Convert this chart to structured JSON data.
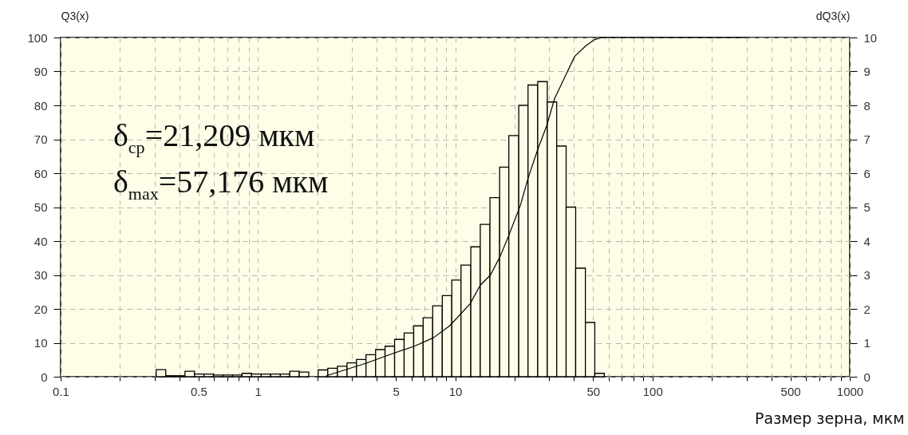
{
  "chart_data": {
    "type": "histogram",
    "xlabel": "Размер зерна, мкм",
    "ylabel": "Q3(x)",
    "y2label": "dQ3(x)",
    "annotations": [
      "δ$_{cp}$=21,209 мкм",
      "δ$_{max}$=57,176 мкм"
    ],
    "log": "x",
    "grid": true,
    "marker": "none",
    "line_style": "solid",
    "xlim": [
      0.1,
      1000
    ],
    "xticks": [
      0.1,
      {
        "value": 0.2,
        "label": null
      },
      {
        "value": 0.3,
        "label": null
      },
      {
        "value": 0.4,
        "label": null
      },
      0.5,
      {
        "value": 0.6,
        "label": null
      },
      {
        "value": 0.7,
        "label": null
      },
      {
        "value": 0.8,
        "label": null
      },
      {
        "value": 0.9,
        "label": null
      },
      1,
      {
        "value": 2,
        "label": null
      },
      {
        "value": 3,
        "label": null
      },
      {
        "value": 4,
        "label": null
      },
      5,
      {
        "value": 6,
        "label": null
      },
      {
        "value": 7,
        "label": null
      },
      {
        "value": 8,
        "label": null
      },
      {
        "value": 9,
        "label": null
      },
      10,
      {
        "value": 20,
        "label": null
      },
      {
        "value": 30,
        "label": null
      },
      {
        "value": 40,
        "label": null
      },
      50,
      {
        "value": 60,
        "label": null
      },
      {
        "value": 70,
        "label": null
      },
      {
        "value": 80,
        "label": null
      },
      {
        "value": 90,
        "label": null
      },
      100,
      {
        "value": 200,
        "label": null
      },
      {
        "value": 300,
        "label": null
      },
      {
        "value": 400,
        "label": null
      },
      500,
      {
        "value": 600,
        "label": null
      },
      {
        "value": 700,
        "label": null
      },
      {
        "value": 800,
        "label": null
      },
      {
        "value": 900,
        "label": null
      },
      1000
    ],
    "ylim": [
      0,
      100
    ],
    "yticks": [
      0,
      10,
      20,
      30,
      40,
      50,
      60,
      70,
      80,
      90,
      100
    ],
    "y2lim": [
      0,
      10
    ],
    "y2ticks": [
      0,
      1,
      2,
      3,
      4,
      5,
      6,
      7,
      8,
      9,
      10
    ],
    "series": [
      {
        "type": "histogram",
        "axis": "y2",
        "color": "#fdfde8",
        "bins": [
          0.305,
          0.341,
          0.382,
          0.427,
          0.477,
          0.533,
          0.595,
          0.666,
          0.744,
          0.831,
          0.929,
          1.04,
          1.16,
          1.3,
          1.45,
          1.62,
          1.81,
          2.02,
          2.26,
          2.53,
          2.83,
          3.16,
          3.53,
          3.95,
          4.41,
          4.93,
          5.51,
          6.16,
          6.88,
          7.69,
          8.6,
          9.61,
          10.7,
          12.0,
          13.4,
          15.0,
          16.8,
          18.7,
          21.0,
          23.4,
          26.2,
          29.3,
          32.7,
          36.5,
          40.8,
          45.7,
          51.0,
          57.0
        ],
        "values": [
          0.21,
          0.03,
          0.03,
          0.16,
          0.08,
          0.08,
          0.05,
          0.05,
          0.05,
          0.1,
          0.08,
          0.08,
          0.08,
          0.08,
          0.16,
          0.14,
          0,
          0.2,
          0.25,
          0.31,
          0.41,
          0.51,
          0.65,
          0.8,
          0.9,
          1.1,
          1.29,
          1.5,
          1.74,
          2.09,
          2.39,
          2.85,
          3.29,
          3.83,
          4.49,
          5.28,
          6.18,
          7.11,
          8.0,
          8.6,
          8.7,
          8.1,
          6.8,
          5.0,
          3.2,
          1.6,
          0.1
        ]
      },
      {
        "type": "line",
        "color": "#000000",
        "x": [
          2.22,
          2.43,
          3.54,
          4.91,
          6.21,
          7.76,
          9.37,
          11.9,
          13.4,
          15.1,
          16.9,
          18.5,
          21.4,
          23.4,
          26.2,
          29.1,
          31.9,
          36.4,
          40.4,
          46.0,
          50.9,
          55.5,
          299
        ],
        "values": [
          0.3,
          1,
          4,
          7,
          9,
          11.5,
          15,
          21.5,
          27,
          30,
          35.5,
          41,
          50.5,
          58.5,
          67,
          74,
          82,
          89,
          94.5,
          97.6,
          99.4,
          100,
          100
        ]
      }
    ]
  }
}
